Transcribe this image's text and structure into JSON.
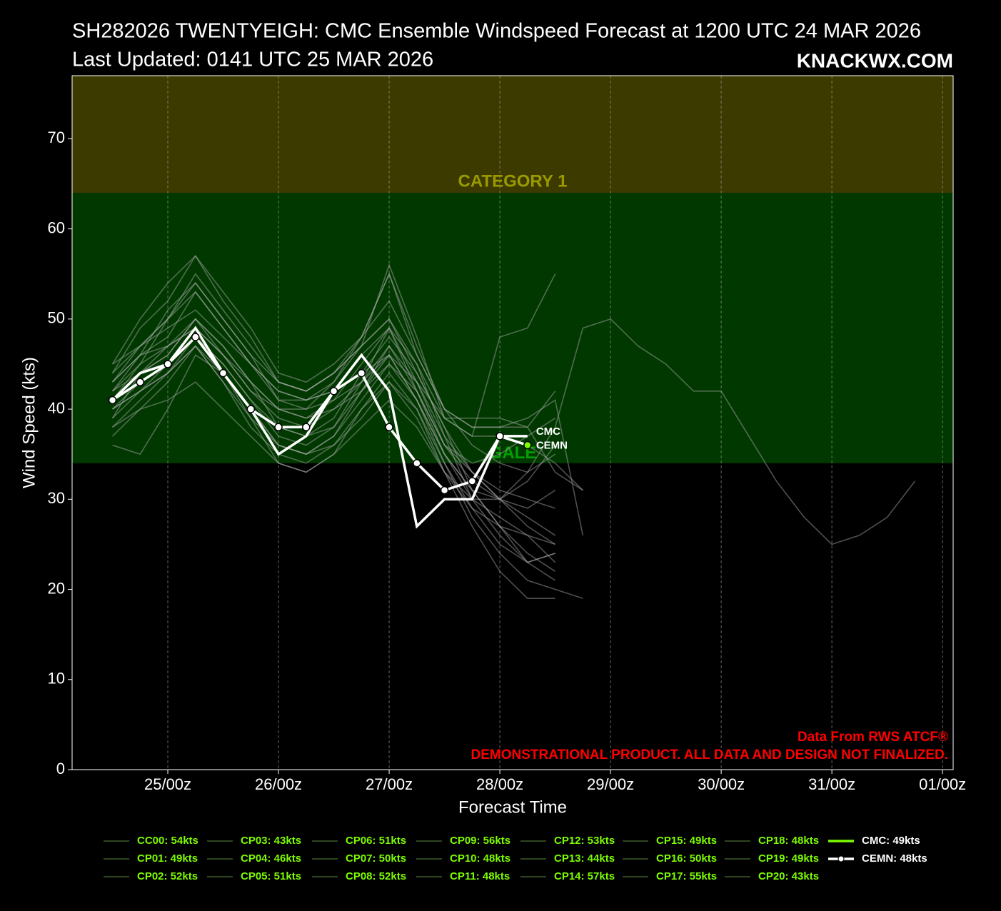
{
  "chart_data": {
    "type": "line",
    "title": "SH282026 TWENTYEIGH: CMC Ensemble Windspeed Forecast at 1200 UTC 24 MAR 2026",
    "subtitle": "Last Updated: 0141 UTC 25 MAR 2026",
    "watermark": "KNACKWX.COM",
    "x_label": "Forecast Time",
    "y_label": "Wind Speed (kts)",
    "xlim": [
      -20.75,
      170.3
    ],
    "ylim": [
      0,
      77
    ],
    "xticks": [
      {
        "value": 0,
        "label": "25/00z"
      },
      {
        "value": 24,
        "label": "26/00z"
      },
      {
        "value": 48,
        "label": "27/00z"
      },
      {
        "value": 72,
        "label": "28/00z"
      },
      {
        "value": 96,
        "label": "29/00z"
      },
      {
        "value": 120,
        "label": "30/00z"
      },
      {
        "value": 144,
        "label": "31/00z"
      },
      {
        "value": 168,
        "label": "01/00z"
      }
    ],
    "yticks": [
      0,
      10,
      20,
      30,
      40,
      50,
      60,
      70
    ],
    "grid": "x",
    "bands": [
      {
        "label": "CATEGORY 1",
        "from": 64,
        "to": 77,
        "color": "#3d3a00",
        "label_color": "#9a9a00"
      },
      {
        "label": "GALE",
        "from": 34,
        "to": 64,
        "color": "#003800",
        "label_color": "#00a000"
      }
    ],
    "member_color": "#b0b0b0",
    "legend_text_color": "#7cfc00",
    "notes": [
      "Data From RWS ATCF®",
      "DEMONSTRATIONAL PRODUCT. ALL DATA AND DESIGN NOT FINALIZED."
    ],
    "notes_color": "#ff0000",
    "members": [
      {
        "name": "CC00: 54kts",
        "x": [
          -12,
          -6,
          0,
          6,
          12,
          18,
          24,
          30,
          36,
          42,
          48,
          54,
          60,
          66,
          72,
          78,
          84
        ],
        "values": [
          43,
          46,
          48,
          53,
          49,
          45,
          42,
          41,
          43,
          48,
          55,
          46,
          40,
          38,
          38,
          38,
          42
        ]
      },
      {
        "name": "CP01: 49kts",
        "x": [
          -12,
          -6,
          0,
          6,
          12,
          18,
          24,
          30,
          36,
          42,
          48,
          54,
          60,
          66,
          72,
          78,
          84
        ],
        "values": [
          40,
          42,
          44,
          48,
          45,
          41,
          37,
          36,
          38,
          43,
          46,
          41,
          35,
          31,
          30,
          29,
          31
        ]
      },
      {
        "name": "CP02: 52kts",
        "x": [
          -12,
          -6,
          0,
          6,
          12,
          18,
          24,
          30,
          36,
          42,
          48,
          54,
          60,
          66,
          72,
          78,
          84
        ],
        "values": [
          42,
          45,
          50,
          54,
          50,
          46,
          43,
          42,
          44,
          47,
          50,
          44,
          38,
          33,
          30,
          27,
          25
        ]
      },
      {
        "name": "CP03: 43kts",
        "x": [
          -12,
          -6,
          0,
          6,
          12,
          18,
          24,
          30,
          36,
          42,
          48,
          54,
          60,
          66,
          72,
          78,
          84
        ],
        "values": [
          38,
          41,
          44,
          47,
          43,
          39,
          36,
          35,
          36,
          40,
          43,
          40,
          34,
          29,
          25,
          23,
          24
        ]
      },
      {
        "name": "CP04: 46kts",
        "x": [
          -12,
          -6,
          0,
          6,
          12,
          18,
          24,
          30,
          36,
          42,
          48,
          54,
          60,
          66,
          72,
          78,
          84,
          90
        ],
        "values": [
          45,
          47,
          49,
          51,
          48,
          45,
          42,
          41,
          42,
          44,
          46,
          43,
          39,
          37,
          37,
          36,
          34,
          31
        ]
      },
      {
        "name": "CP05: 51kts",
        "x": [
          -12,
          -6,
          0,
          6,
          12,
          18,
          24,
          30,
          36,
          42,
          48,
          54,
          60,
          66,
          72,
          78,
          84
        ],
        "values": [
          36,
          35,
          40,
          46,
          44,
          40,
          36,
          35,
          37,
          41,
          45,
          42,
          36,
          32,
          30,
          28,
          26
        ]
      },
      {
        "name": "CP06: 51kts",
        "x": [
          -12,
          -6,
          0,
          6,
          12,
          18,
          24,
          30,
          36,
          42,
          48,
          54,
          60,
          66,
          72,
          78,
          84,
          90
        ],
        "values": [
          44,
          49,
          52,
          57,
          53,
          49,
          44,
          43,
          45,
          48,
          52,
          46,
          40,
          38,
          38,
          39,
          41,
          26
        ]
      },
      {
        "name": "CP07: 50kts",
        "x": [
          -12,
          -6,
          0,
          6,
          12,
          18,
          24,
          30,
          36,
          42,
          48,
          54,
          60,
          66,
          72,
          78,
          84
        ],
        "values": [
          41,
          45,
          47,
          50,
          46,
          42,
          40,
          39,
          40,
          42,
          47,
          43,
          36,
          34,
          35,
          37,
          39
        ]
      },
      {
        "name": "CP08: 52kts",
        "x": [
          -12,
          -6,
          0,
          6,
          12,
          18,
          24,
          30,
          36,
          42,
          48,
          54,
          60,
          66,
          72,
          78,
          84
        ],
        "values": [
          39,
          44,
          46,
          50,
          47,
          43,
          38,
          37,
          39,
          44,
          48,
          44,
          38,
          31,
          27,
          23,
          24
        ]
      },
      {
        "name": "CP09: 56kts",
        "x": [
          -12,
          -6,
          0,
          6,
          12,
          18,
          24,
          30,
          36,
          42,
          48,
          54,
          60,
          66,
          72,
          78,
          84
        ],
        "values": [
          42,
          46,
          51,
          54,
          50,
          46,
          41,
          40,
          43,
          47,
          56,
          48,
          39,
          37,
          48,
          49,
          55
        ]
      },
      {
        "name": "CP10: 48kts",
        "x": [
          -12,
          -6,
          0,
          6,
          12,
          18,
          24,
          30,
          36,
          42,
          48,
          54,
          60,
          66,
          72,
          78,
          84,
          90
        ],
        "values": [
          40,
          43,
          45,
          48,
          44,
          40,
          36,
          35,
          37,
          42,
          45,
          41,
          34,
          28,
          24,
          21,
          20,
          19
        ]
      },
      {
        "name": "CP11: 48kts",
        "x": [
          -12,
          -6,
          0,
          6,
          12,
          18,
          24,
          30,
          36,
          42,
          48,
          54,
          60,
          66,
          72,
          78,
          84
        ],
        "values": [
          37,
          40,
          43,
          47,
          44,
          39,
          34,
          33,
          35,
          40,
          44,
          40,
          33,
          27,
          22,
          19,
          19
        ]
      },
      {
        "name": "CP12: 53kts",
        "x": [
          -12,
          -6,
          0,
          6,
          12,
          18,
          24,
          30,
          36,
          42,
          48,
          54,
          60,
          66,
          72,
          78,
          84
        ],
        "values": [
          43,
          47,
          50,
          53,
          49,
          45,
          41,
          41,
          42,
          46,
          49,
          45,
          37,
          30,
          26,
          23,
          21
        ]
      },
      {
        "name": "CP13: 44kts",
        "x": [
          -12,
          -6,
          0,
          6,
          12,
          18,
          24,
          30,
          36,
          42,
          48,
          54,
          60,
          66,
          72,
          78,
          84
        ],
        "values": [
          39,
          42,
          44,
          47,
          43,
          38,
          35,
          34,
          36,
          39,
          43,
          39,
          33,
          29,
          27,
          26,
          23
        ]
      },
      {
        "name": "CP14: 57kts",
        "x": [
          -12,
          -6,
          0,
          6,
          12,
          18,
          24,
          30,
          36,
          42,
          48,
          54,
          60,
          66,
          72,
          78,
          84,
          90
        ],
        "values": [
          45,
          50,
          54,
          57,
          52,
          48,
          43,
          42,
          44,
          47,
          50,
          45,
          39,
          39,
          39,
          38,
          33,
          31
        ]
      },
      {
        "name": "CP15: 49kts",
        "x": [
          -12,
          -6,
          0,
          6,
          12,
          18,
          24,
          30,
          36,
          42,
          48,
          54,
          60,
          66,
          72,
          78,
          84
        ],
        "values": [
          42,
          44,
          47,
          49,
          46,
          42,
          39,
          38,
          40,
          43,
          49,
          42,
          35,
          30,
          28,
          26,
          25
        ]
      },
      {
        "name": "CP16: 50kts",
        "x": [
          -12,
          -6,
          0,
          6,
          12,
          18,
          24,
          30,
          36,
          42,
          48,
          54,
          60,
          66,
          72,
          78,
          84
        ],
        "values": [
          41,
          44,
          46,
          50,
          47,
          43,
          40,
          39,
          41,
          45,
          49,
          43,
          37,
          33,
          30,
          32,
          36
        ]
      },
      {
        "name": "CP17: 55kts",
        "x": [
          -12,
          -6,
          0,
          6,
          12,
          18,
          24,
          30,
          36,
          42,
          48,
          54,
          60,
          66,
          72,
          78,
          84
        ],
        "values": [
          44,
          47,
          50,
          55,
          51,
          47,
          43,
          42,
          44,
          48,
          55,
          47,
          40,
          36,
          34,
          33,
          35
        ]
      },
      {
        "name": "CP18: 48kts",
        "x": [
          -12,
          -6,
          0,
          6,
          12,
          18,
          24,
          30,
          36,
          42,
          48,
          54,
          60,
          66,
          72,
          78,
          84
        ],
        "values": [
          40,
          42,
          45,
          48,
          45,
          41,
          38,
          37,
          38,
          42,
          46,
          41,
          35,
          31,
          27,
          24,
          22
        ]
      },
      {
        "name": "CP19: 49kts",
        "x": [
          -12,
          -6,
          0,
          6,
          12,
          18,
          24,
          30,
          36,
          42,
          48,
          54,
          60,
          66,
          72,
          78,
          84
        ],
        "values": [
          43,
          46,
          47,
          49,
          46,
          43,
          40,
          40,
          41,
          43,
          47,
          42,
          36,
          33,
          31,
          30,
          29
        ]
      },
      {
        "name": "CP20: 43kts",
        "x": [
          -12,
          -6,
          0,
          6,
          12,
          18,
          24,
          30,
          36,
          42,
          48,
          54,
          60,
          66,
          72,
          78,
          84,
          90,
          96,
          102,
          108,
          114,
          120,
          126,
          132,
          138,
          144,
          150,
          156,
          162
        ],
        "values": [
          38,
          40,
          41,
          43,
          40,
          37,
          34,
          33,
          35,
          38,
          41,
          38,
          33,
          30,
          30,
          33,
          38,
          49,
          50,
          47,
          45,
          42,
          42,
          37,
          32,
          28,
          25,
          26,
          28,
          32
        ]
      }
    ],
    "series": [
      {
        "name": "CMC: 49kts",
        "label": "CMC",
        "color": "#ffffff",
        "legend_color": "#7cfc00",
        "markers": false,
        "x": [
          -12,
          -6,
          0,
          6,
          12,
          18,
          24,
          30,
          36,
          42,
          48,
          54,
          60,
          66,
          72,
          78
        ],
        "values": [
          41,
          44,
          45,
          49,
          44,
          40,
          35,
          37,
          42,
          46,
          42,
          27,
          30,
          30,
          37,
          37
        ]
      },
      {
        "name": "CEMN: 48kts",
        "label": "CEMN",
        "color": "#ffffff",
        "legend_color": "#ffffff",
        "markers": true,
        "last_marker_color": "#7cfc00",
        "x": [
          -12,
          -6,
          0,
          6,
          12,
          18,
          24,
          30,
          36,
          42,
          48,
          54,
          60,
          66,
          72,
          78
        ],
        "values": [
          41,
          43,
          45,
          48,
          44,
          40,
          38,
          38,
          42,
          44,
          38,
          34,
          31,
          32,
          37,
          36
        ]
      }
    ]
  }
}
